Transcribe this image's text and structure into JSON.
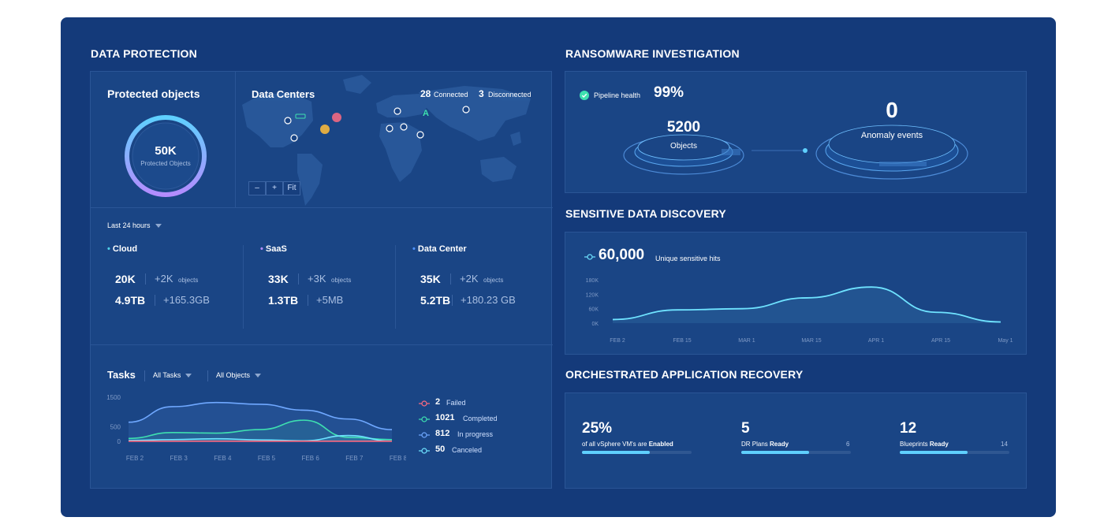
{
  "data_protection": {
    "title": "DATA PROTECTION",
    "protected": {
      "title": "Protected objects",
      "value": "50K",
      "sub": "Protected Objects"
    },
    "centers": {
      "title": "Data Centers",
      "connected_count": "28",
      "connected_label": "Connected",
      "disconnected_count": "3",
      "disconnected_label": "Disconnected",
      "zoom": [
        "–",
        "+",
        "Fit"
      ]
    },
    "period": "Last 24 hours",
    "groups": [
      {
        "name": "Cloud",
        "color": "#4fd1e8",
        "objects": "20K",
        "objects_delta": "+2K",
        "objects_unit": "objects",
        "size": "4.9TB",
        "size_delta": "+165.3GB"
      },
      {
        "name": "SaaS",
        "color": "#b48cff",
        "objects": "33K",
        "objects_delta": "+3K",
        "objects_unit": "objects",
        "size": "1.3TB",
        "size_delta": "+5MB"
      },
      {
        "name": "Data Center",
        "color": "#4f93ff",
        "objects": "35K",
        "objects_delta": "+2K",
        "objects_unit": "objects",
        "size": "5.2TB",
        "size_delta": "+180.23 GB"
      }
    ],
    "tasks": {
      "title": "Tasks",
      "filter1": "All Tasks",
      "filter2": "All Objects",
      "legend": [
        {
          "count": "2",
          "label": "Failed",
          "color": "#ff6b81"
        },
        {
          "count": "1021",
          "label": "Completed",
          "color": "#3ee0b0"
        },
        {
          "count": "812",
          "label": "In progress",
          "color": "#6fa8ff"
        },
        {
          "count": "50",
          "label": "Canceled",
          "color": "#6fe3ff"
        }
      ]
    }
  },
  "ransomware": {
    "title": "RANSOMWARE INVESTIGATION",
    "pipeline_label": "Pipeline health",
    "pipeline_value": "99%",
    "objects_value": "5200",
    "objects_label": "Objects",
    "anomaly_value": "0",
    "anomaly_label": "Anomaly events"
  },
  "sensitive": {
    "title": "SENSITIVE DATA DISCOVERY",
    "value": "60,000",
    "value_label": "Unique sensitive hits"
  },
  "orchestrated": {
    "title": "ORCHESTRATED APPLICATION RECOVERY",
    "items": [
      {
        "value": "25%",
        "label": "of all vSphere VM's are",
        "status": "Enabled",
        "total": "",
        "fill": 0.62
      },
      {
        "value": "5",
        "label": "DR Plans",
        "status": "Ready",
        "total": "6",
        "fill": 0.62
      },
      {
        "value": "12",
        "label": "Blueprints",
        "status": "Ready",
        "total": "14",
        "fill": 0.62
      }
    ]
  },
  "chart_data": [
    {
      "type": "area",
      "title": "",
      "categories": [
        "FEB 2",
        "FEB 3",
        "FEB 4",
        "FEB 5",
        "FEB 6",
        "FEB 7",
        "FEB 8"
      ],
      "yticks": [
        "1500",
        "500",
        "0"
      ],
      "ylim": [
        0,
        1500
      ],
      "series": [
        {
          "name": "Failed",
          "color": "#ff6b81",
          "values": [
            5,
            5,
            5,
            5,
            5,
            5,
            5
          ]
        },
        {
          "name": "Completed",
          "color": "#3ee0b0",
          "values": [
            100,
            300,
            280,
            400,
            720,
            140,
            60
          ]
        },
        {
          "name": "In progress",
          "color": "#6fa8ff",
          "values": [
            650,
            1180,
            1320,
            1260,
            1060,
            760,
            400
          ]
        },
        {
          "name": "Canceled",
          "color": "#6fe3ff",
          "values": [
            30,
            60,
            90,
            50,
            20,
            200,
            10
          ]
        }
      ]
    },
    {
      "type": "area",
      "title": "",
      "categories": [
        "FEB 2",
        "FEB 15",
        "MAR 1",
        "MAR 15",
        "APR 1",
        "APR 15",
        "May 1"
      ],
      "yticks": [
        "180K",
        "120K",
        "60K",
        "0K"
      ],
      "ylim": [
        0,
        180000
      ],
      "series": [
        {
          "color": "#6fe3ff",
          "values": [
            15000,
            55000,
            60000,
            105000,
            150000,
            45000,
            5000
          ]
        }
      ]
    }
  ]
}
